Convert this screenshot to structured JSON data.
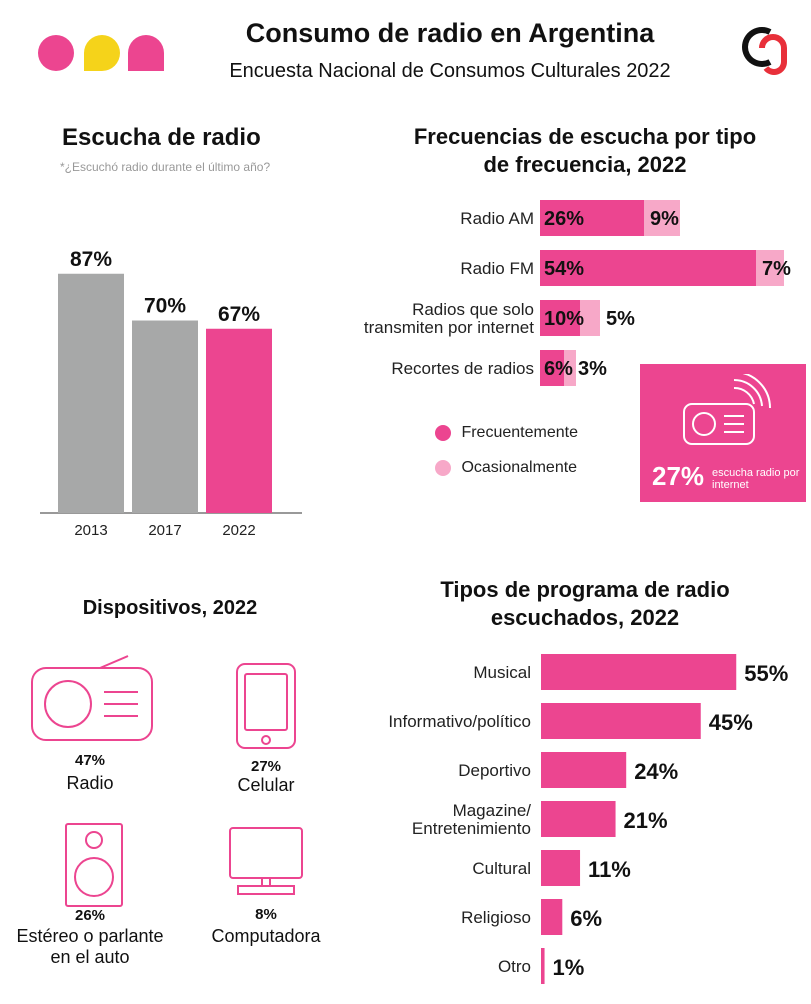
{
  "header": {
    "title": "Consumo de radio en Argentina",
    "subtitle": "Encuesta Nacional de Consumos Culturales 2022"
  },
  "colors": {
    "pink": "#ec4590",
    "light_pink": "#f7a8c8",
    "gray": "#a7a8a8",
    "yellow": "#f5d31a"
  },
  "chart_data": [
    {
      "type": "bar",
      "title": "Escucha de radio",
      "subtitle": "*¿Escuchó radio durante el último año?",
      "categories": [
        "2013",
        "2017",
        "2022"
      ],
      "values": [
        87,
        70,
        67
      ],
      "value_labels": [
        "87%",
        "70%",
        "67%"
      ],
      "ylim": [
        0,
        100
      ]
    },
    {
      "type": "bar",
      "orientation": "horizontal",
      "stacked": true,
      "title": "Frecuencias de escucha por tipo de frecuencia, 2022",
      "categories": [
        "Radio AM",
        "Radio FM",
        "Radios que solo transmiten por internet",
        "Recortes de radios"
      ],
      "series": [
        {
          "name": "Frecuentemente",
          "values": [
            26,
            54,
            10,
            6
          ],
          "labels": [
            "26%",
            "54%",
            "10%",
            "6%"
          ]
        },
        {
          "name": "Ocasionalmente",
          "values": [
            9,
            7,
            5,
            3
          ],
          "labels": [
            "9%",
            "7%",
            "5%",
            "3%"
          ]
        }
      ],
      "legend": [
        "Frecuentemente",
        "Ocasionalmente"
      ],
      "legend_position": "bottom-left"
    },
    {
      "type": "bar",
      "orientation": "horizontal",
      "title": "Tipos de programa de radio escuchados, 2022",
      "categories": [
        "Musical",
        "Informativo/político",
        "Deportivo",
        "Magazine/ Entretenimiento",
        "Cultural",
        "Religioso",
        "Otro"
      ],
      "values": [
        55,
        45,
        24,
        21,
        11,
        6,
        1
      ],
      "value_labels": [
        "55%",
        "45%",
        "24%",
        "21%",
        "11%",
        "6%",
        "1%"
      ]
    }
  ],
  "internet_card": {
    "pct": "27%",
    "text": "escucha radio por internet"
  },
  "devices": {
    "title": "Dispositivos, 2022",
    "items": [
      {
        "pct": "47%",
        "name": "Radio",
        "icon": "radio-icon",
        "value": 47
      },
      {
        "pct": "27%",
        "name": "Celular",
        "icon": "phone-icon",
        "value": 27
      },
      {
        "pct": "26%",
        "name": "Estéreo o parlante en el auto",
        "icon": "speaker-icon",
        "value": 26
      },
      {
        "pct": "8%",
        "name": "Computadora",
        "icon": "monitor-icon",
        "value": 8
      }
    ]
  }
}
